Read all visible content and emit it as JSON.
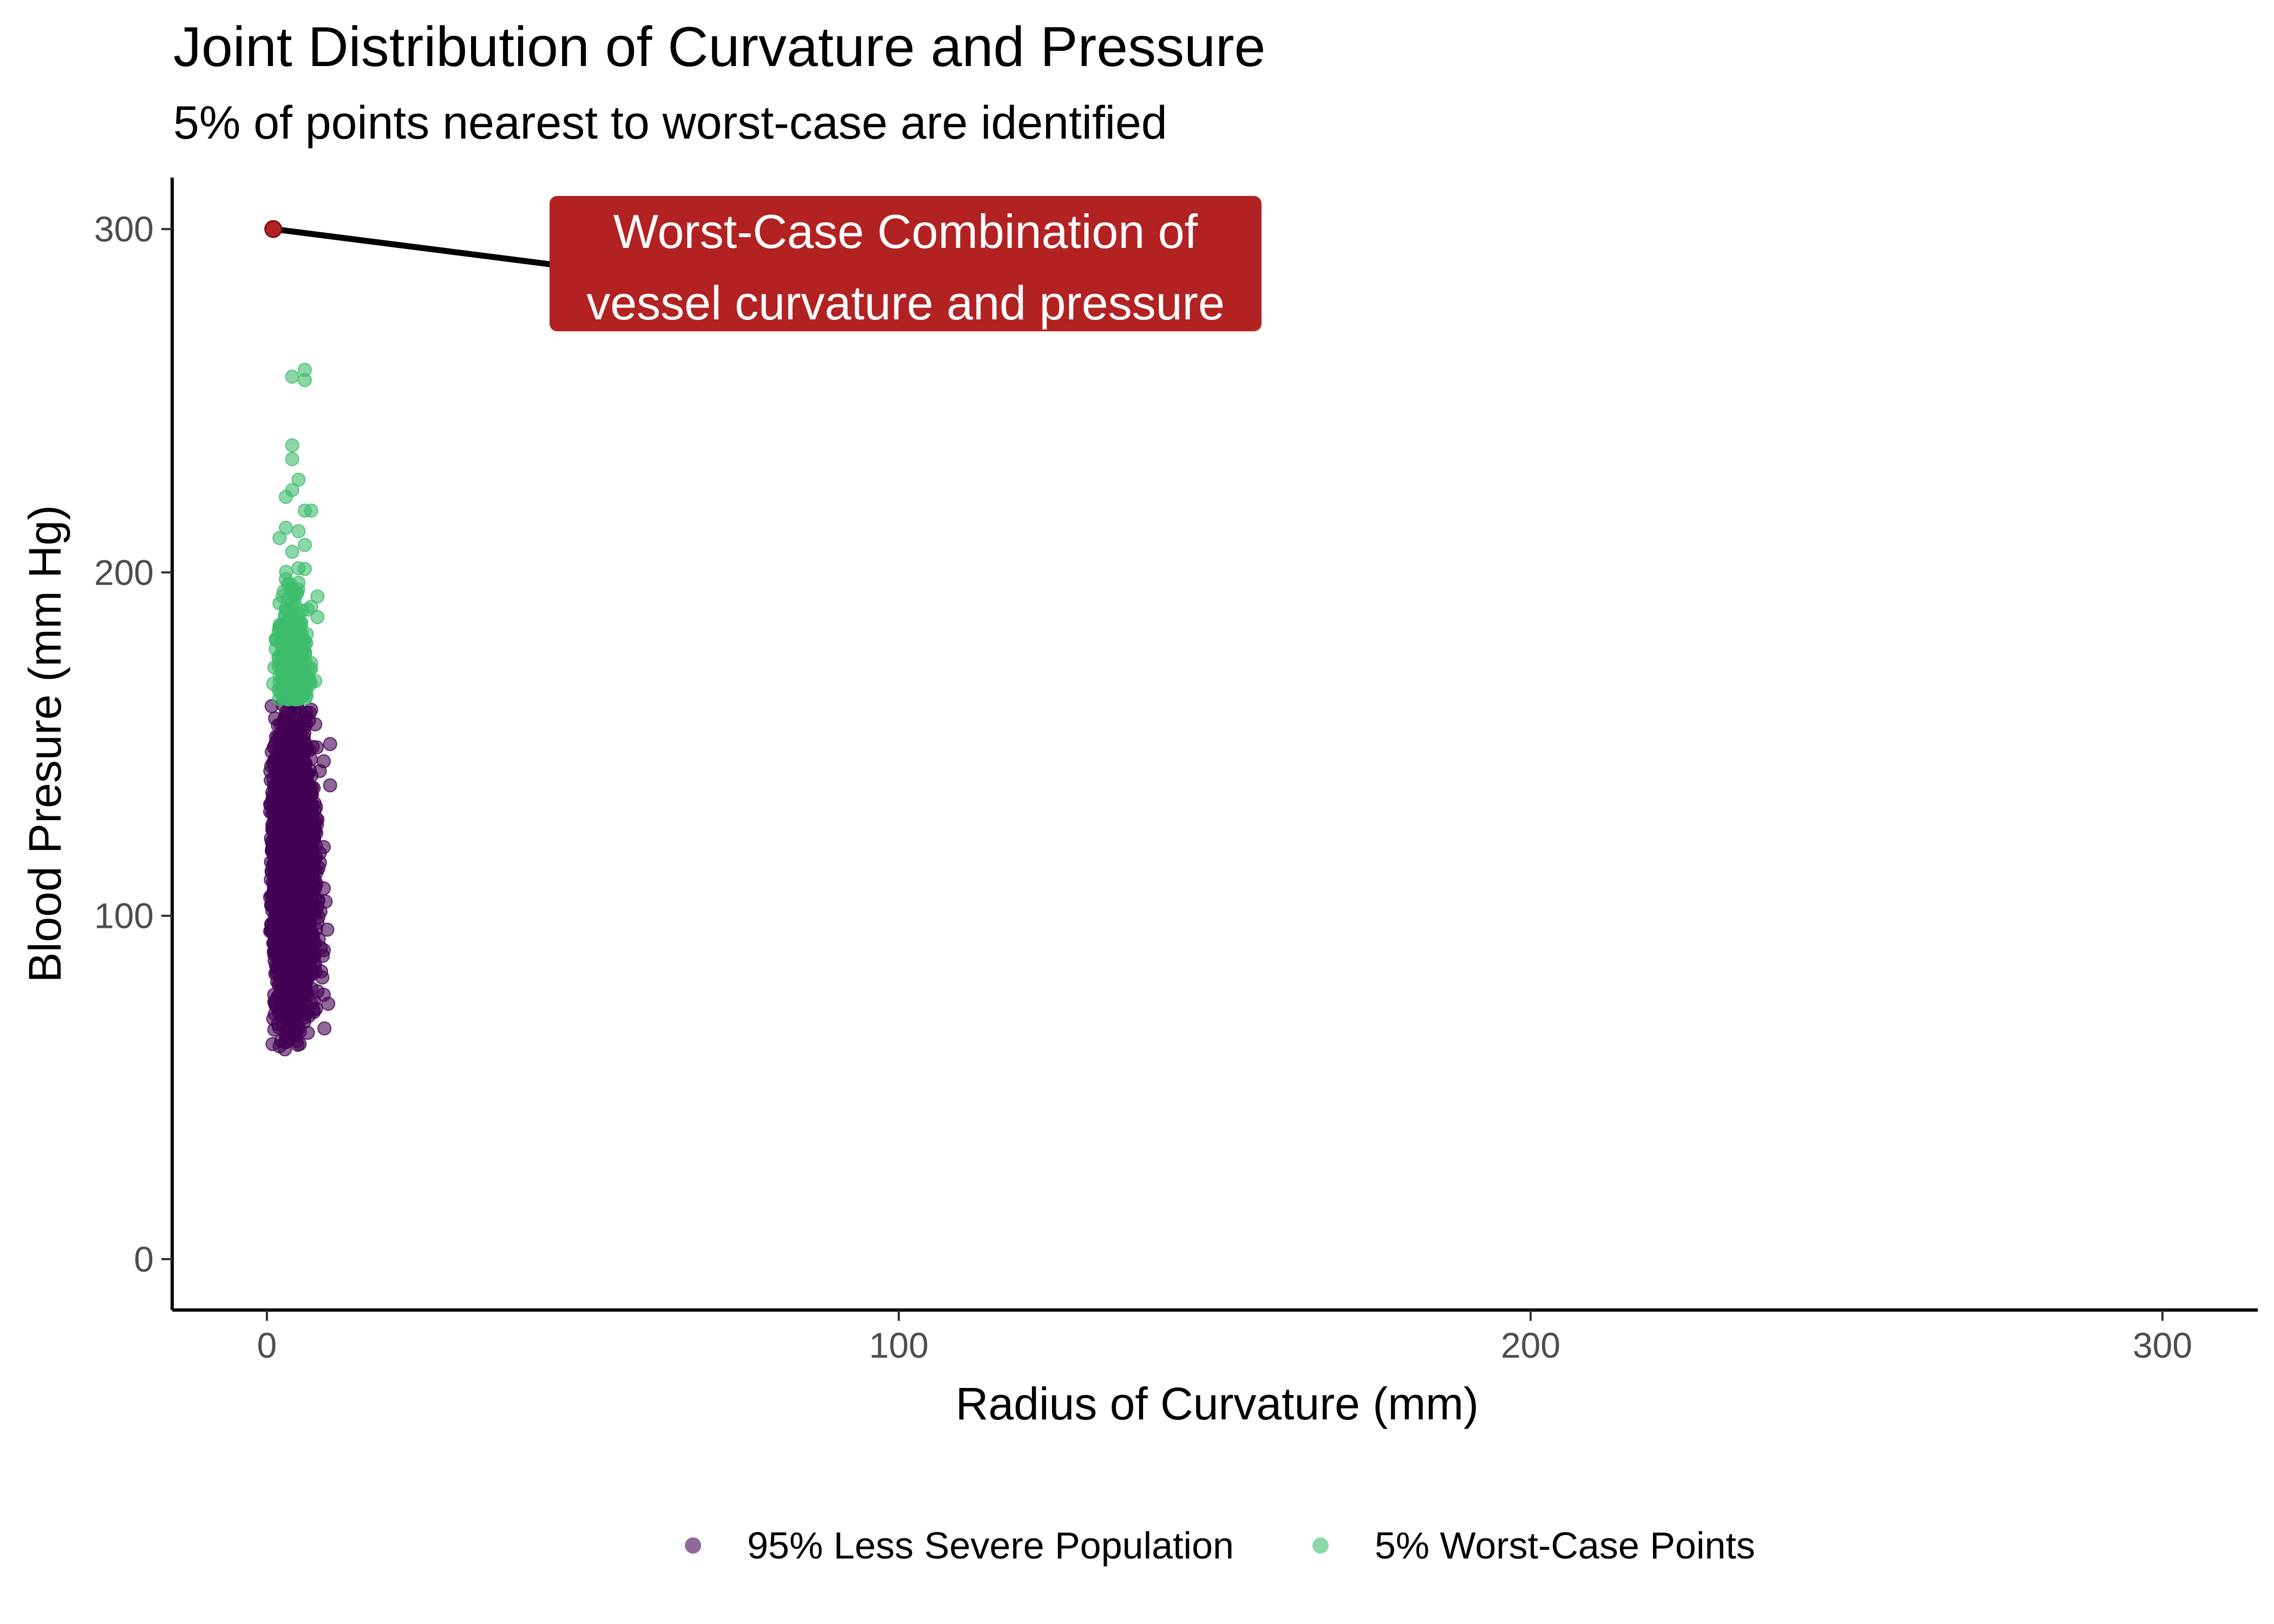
{
  "chart_data": {
    "type": "scatter",
    "title": "Joint Distribution of Curvature and Pressure",
    "subtitle": "5% of points nearest to worst-case are identified",
    "xlabel": "Radius of Curvature (mm)",
    "ylabel": "Blood Presure (mm Hg)",
    "xlim": [
      -15,
      315
    ],
    "ylim": [
      -15,
      315
    ],
    "x_ticks": [
      0,
      100,
      200,
      300
    ],
    "y_ticks": [
      0,
      100,
      200,
      300
    ],
    "grid": false,
    "legend_position": "bottom",
    "series": [
      {
        "name": "95% Less Severe Population",
        "color": "#440154",
        "opacity": 0.6,
        "approx_count": 9500,
        "x_range": [
          0.5,
          10
        ],
        "y_range": [
          61,
          163
        ],
        "points": [
          [
            2,
            62
          ],
          [
            3,
            65
          ],
          [
            5,
            67
          ],
          [
            1,
            70
          ],
          [
            4,
            72
          ],
          [
            6,
            75
          ],
          [
            9,
            77
          ],
          [
            8,
            78
          ],
          [
            2,
            80
          ],
          [
            5,
            83
          ],
          [
            3,
            85
          ],
          [
            7,
            88
          ],
          [
            9,
            90
          ],
          [
            1,
            92
          ],
          [
            4,
            95
          ],
          [
            8,
            98
          ],
          [
            6,
            100
          ],
          [
            2,
            103
          ],
          [
            5,
            105
          ],
          [
            9,
            108
          ],
          [
            3,
            110
          ],
          [
            7,
            112
          ],
          [
            1,
            115
          ],
          [
            4,
            118
          ],
          [
            9,
            120
          ],
          [
            6,
            122
          ],
          [
            2,
            125
          ],
          [
            8,
            128
          ],
          [
            5,
            130
          ],
          [
            3,
            133
          ],
          [
            7,
            135
          ],
          [
            10,
            138
          ],
          [
            1,
            140
          ],
          [
            4,
            143
          ],
          [
            9,
            145
          ],
          [
            6,
            148
          ],
          [
            10,
            150
          ],
          [
            2,
            152
          ],
          [
            5,
            155
          ],
          [
            3,
            158
          ],
          [
            7,
            160
          ],
          [
            4,
            162
          ]
        ]
      },
      {
        "name": "5% Worst-Case Points",
        "color": "#3dbc6d",
        "opacity": 0.6,
        "approx_count": 500,
        "x_range": [
          1,
          9
        ],
        "y_range": [
          163,
          259
        ],
        "points": [
          [
            6,
            259
          ],
          [
            4,
            257
          ],
          [
            6,
            256
          ],
          [
            4,
            237
          ],
          [
            4,
            233
          ],
          [
            5,
            227
          ],
          [
            4,
            224
          ],
          [
            3,
            222
          ],
          [
            6,
            218
          ],
          [
            7,
            218
          ],
          [
            3,
            213
          ],
          [
            5,
            212
          ],
          [
            2,
            210
          ],
          [
            6,
            208
          ],
          [
            4,
            206
          ],
          [
            6,
            201
          ],
          [
            3,
            198
          ],
          [
            5,
            197
          ],
          [
            4,
            195
          ],
          [
            8,
            193
          ],
          [
            2,
            191
          ],
          [
            7,
            190
          ],
          [
            5,
            188
          ],
          [
            8,
            187
          ],
          [
            2,
            184
          ],
          [
            4,
            182
          ],
          [
            6,
            180
          ],
          [
            3,
            177
          ],
          [
            5,
            175
          ],
          [
            7,
            172
          ],
          [
            2,
            170
          ],
          [
            4,
            168
          ],
          [
            6,
            166
          ],
          [
            3,
            164
          ]
        ]
      },
      {
        "name": "Worst-Case Combination of vessel curvature and pressure",
        "color": "#b22222",
        "points": [
          [
            1,
            300
          ]
        ]
      }
    ],
    "annotation": {
      "label_lines": [
        "Worst-Case Combination of",
        "vessel curvature and pressure"
      ],
      "point": [
        1,
        300
      ],
      "box_color": "#b22222",
      "text_color": "#ffffff"
    }
  }
}
